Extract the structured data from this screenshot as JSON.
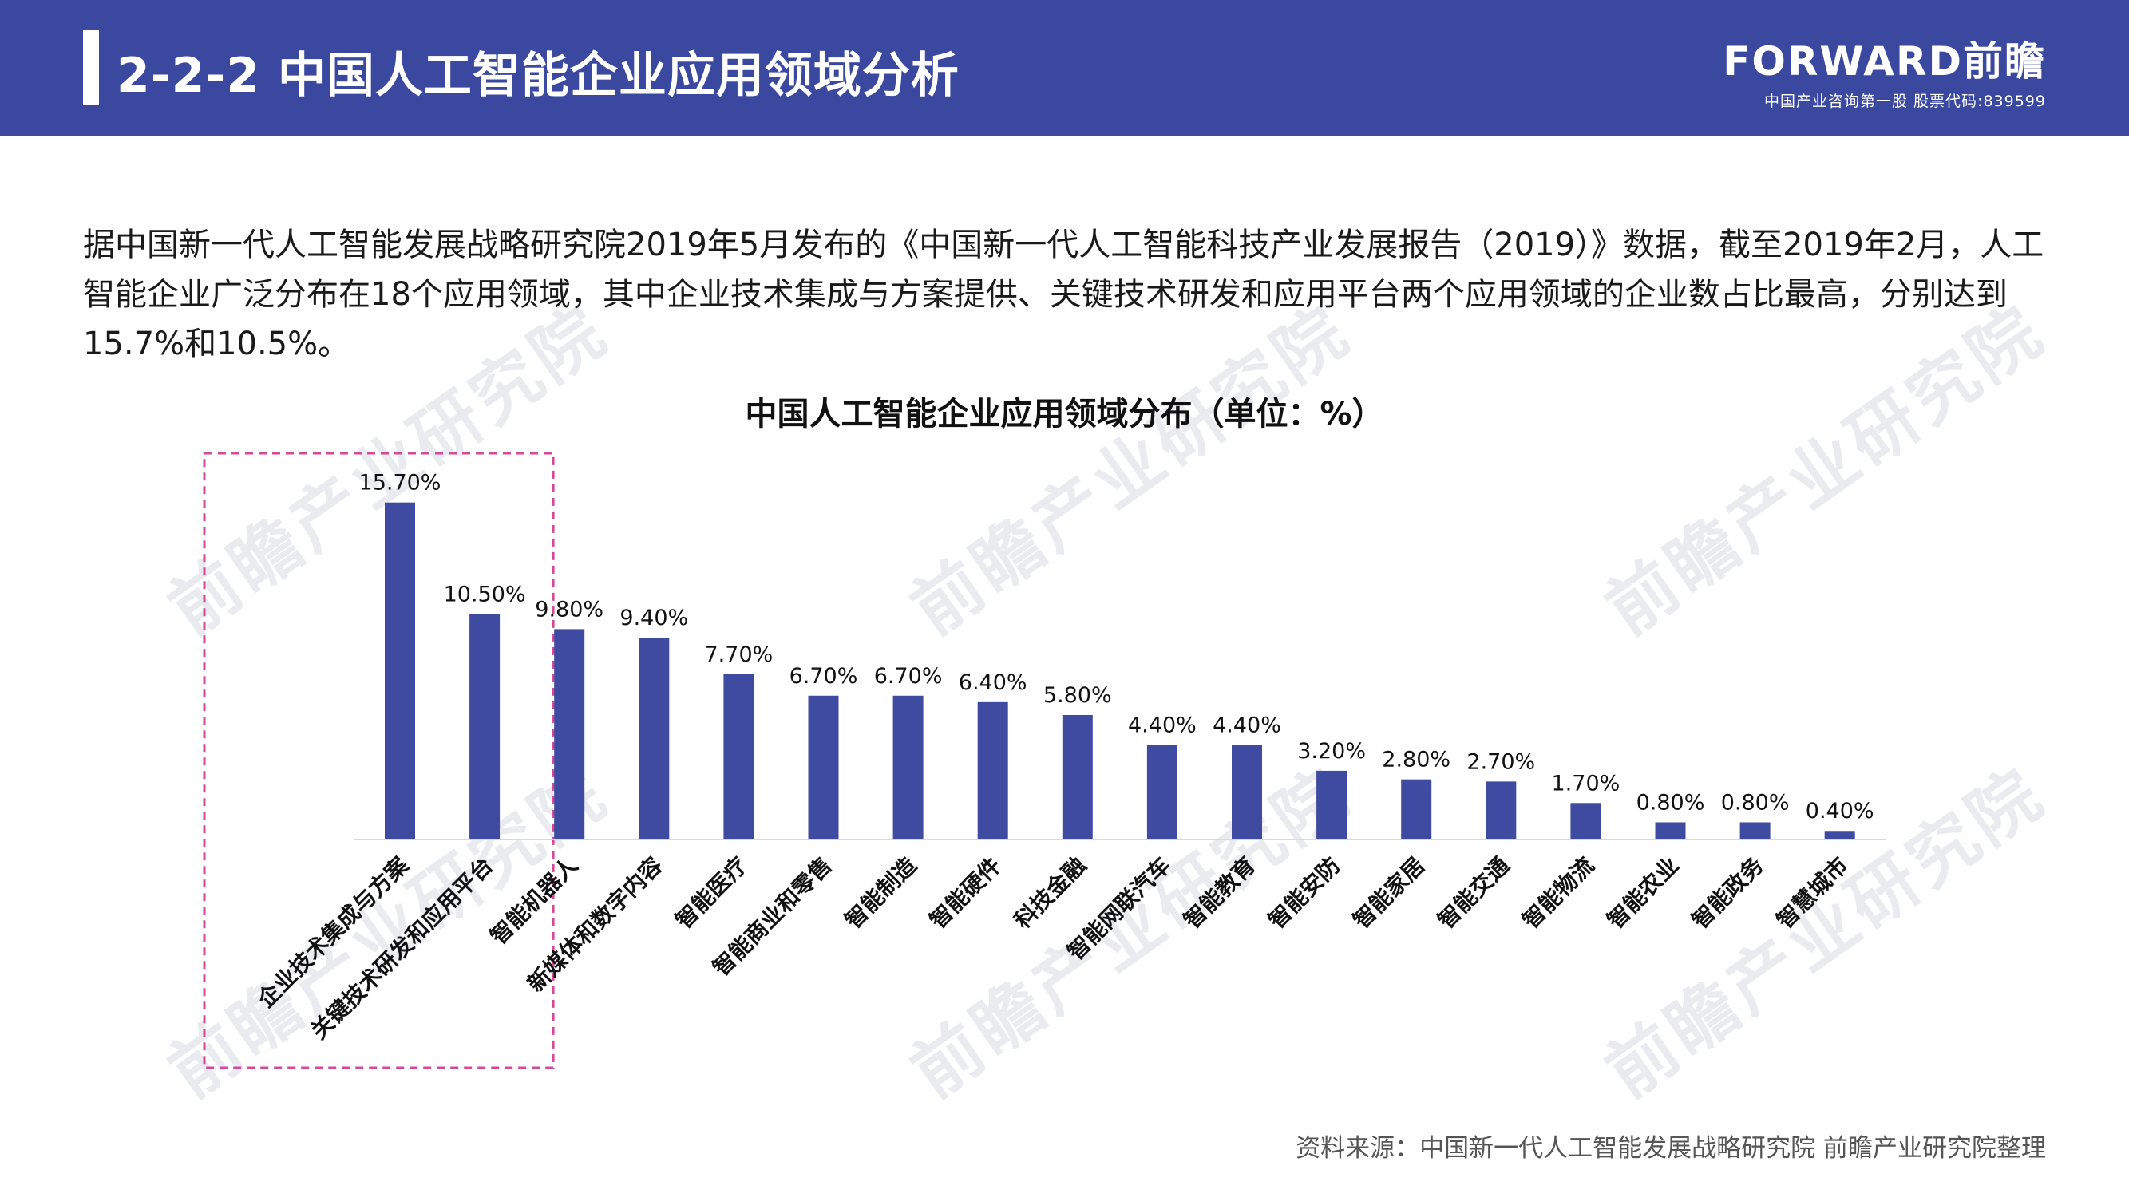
{
  "header": {
    "title": "2-2-2 中国人工智能企业应用领域分析",
    "logo_text": "FORWARD前瞻",
    "logo_sub": "中国产业咨询第一股  股票代码:839599"
  },
  "intro": {
    "text": "据中国新一代人工智能发展战略研究院2019年5月发布的《中国新一代人工智能科技产业发展报告（2019）》数据，截至2019年2月，人工智能企业广泛分布在18个应用领域，其中企业技术集成与方案提供、关键技术研发和应用平台两个应用领域的企业数占比最高，分别达到15.7%和10.5%。"
  },
  "watermark": {
    "text": "前瞻产业研究院"
  },
  "chart_data": {
    "type": "bar",
    "title": "中国人工智能企业应用领域分布（单位：%）",
    "xlabel": "",
    "ylabel": "",
    "ylim": [
      0,
      16.5
    ],
    "grid": false,
    "legend": "none",
    "bar_color": "#3f4ba1",
    "highlight_color": "#d4499a",
    "highlight_categories": [
      "企业技术集成与方案",
      "关键技术研发和应用平台"
    ],
    "categories": [
      "企业技术集成与方案",
      "关键技术研发和应用平台",
      "智能机器人",
      "新媒体和数字内容",
      "智能医疗",
      "智能商业和零售",
      "智能制造",
      "智能硬件",
      "科技金融",
      "智能网联汽车",
      "智能教育",
      "智能安防",
      "智能家居",
      "智能交通",
      "智能物流",
      "智能农业",
      "智能政务",
      "智慧城市"
    ],
    "values": [
      15.7,
      10.5,
      9.8,
      9.4,
      7.7,
      6.7,
      6.7,
      6.4,
      5.8,
      4.4,
      4.4,
      3.2,
      2.8,
      2.7,
      1.7,
      0.8,
      0.8,
      0.4
    ],
    "value_labels": [
      "15.70%",
      "10.50%",
      "9.80%",
      "9.40%",
      "7.70%",
      "6.70%",
      "6.70%",
      "6.40%",
      "5.80%",
      "4.40%",
      "4.40%",
      "3.20%",
      "2.80%",
      "2.70%",
      "1.70%",
      "0.80%",
      "0.80%",
      "0.40%"
    ]
  },
  "source": {
    "text": "资料来源：中国新一代人工智能发展战略研究院 前瞻产业研究院整理"
  }
}
